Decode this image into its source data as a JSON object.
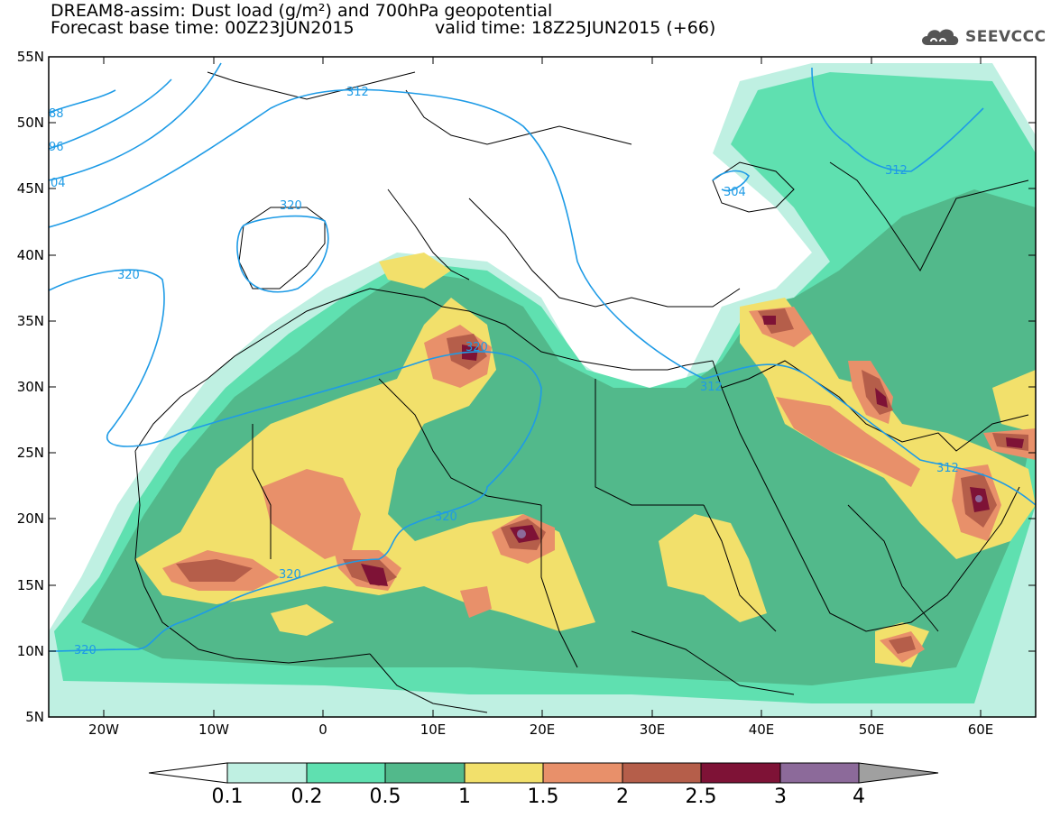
{
  "title": {
    "line1": "DREAM8-assim: Dust load (g/m²) and 700hPa geopotential",
    "line2_left": "Forecast base time: 00Z23JUN2015",
    "line2_right": "valid time: 18Z25JUN2015 (+66)"
  },
  "logo": {
    "icon": "cloud-logo-icon",
    "text": "SEEVCCC"
  },
  "map": {
    "lon_range": [
      -25,
      65
    ],
    "lat_range": [
      5,
      55
    ],
    "lat_ticks": [
      "55N",
      "50N",
      "45N",
      "40N",
      "35N",
      "30N",
      "25N",
      "20N",
      "15N",
      "10N",
      "5N"
    ],
    "lon_ticks": [
      "20W",
      "10W",
      "0",
      "10E",
      "20E",
      "30E",
      "40E",
      "50E",
      "60E"
    ],
    "contour_labels": [
      "88",
      "96",
      "04",
      "312",
      "320",
      "320",
      "320",
      "320",
      "320",
      "320",
      "312",
      "312",
      "304",
      "312"
    ]
  },
  "colorbar": {
    "labels": [
      "0.1",
      "0.2",
      "0.5",
      "1",
      "1.5",
      "2",
      "2.5",
      "3",
      "4"
    ],
    "colors": [
      "#ffffff",
      "#bff0e2",
      "#5fe0b0",
      "#52b98b",
      "#f2e06b",
      "#e8906a",
      "#b55e4a",
      "#7e1236",
      "#8c6a9a",
      "#a0a0a0"
    ]
  }
}
